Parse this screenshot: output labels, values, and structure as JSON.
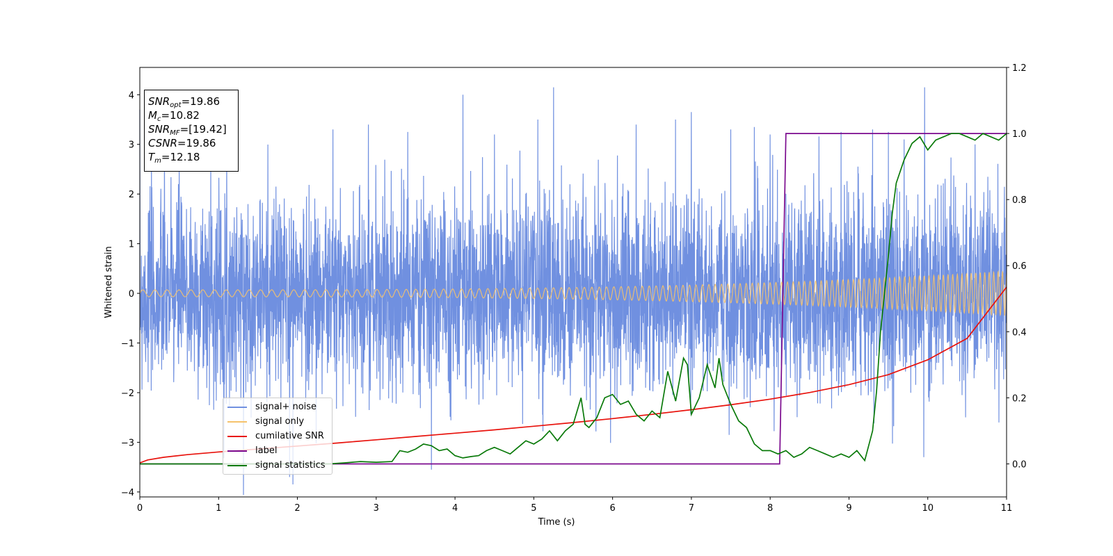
{
  "chart_data": {
    "type": "line",
    "title": "",
    "xlabel": "Time (s)",
    "ylabel_left": "Whitened strain",
    "ylabel_right": "",
    "xlim": [
      0,
      11
    ],
    "ylim_left": [
      -4.1,
      4.55
    ],
    "ylim_right": [
      -0.1,
      1.2
    ],
    "x_ticks": [
      "0",
      "1",
      "2",
      "3",
      "4",
      "5",
      "6",
      "7",
      "8",
      "9",
      "10",
      "11"
    ],
    "y_ticks_left": [
      "−4",
      "−3",
      "−2",
      "−1",
      "0",
      "1",
      "2",
      "3",
      "4"
    ],
    "y_ticks_right": [
      "0.0",
      "0.2",
      "0.4",
      "0.6",
      "0.8",
      "1.0",
      "1.2"
    ],
    "grid": false,
    "legend_position": "lower-left",
    "annotation": {
      "snr_opt_name": "SNR",
      "snr_opt_sub": "opt",
      "snr_opt_value": "=19.86",
      "mc_name": "M",
      "mc_sub": "c",
      "mc_value": "=10.82",
      "snr_mf_name": "SNR",
      "snr_mf_sub": "MF",
      "snr_mf_value": "=[19.42]",
      "csnr_name": "CSNR",
      "csnr_value": "=19.86",
      "tm_name": "T",
      "tm_sub": "m",
      "tm_value": "=12.18"
    },
    "series": [
      {
        "name": "signal+ noise",
        "axis": "left",
        "color": "#7090e0",
        "noise_sigma": 0.95,
        "noise_seed": 7,
        "spikes": [
          [
            0.5,
            2.6
          ],
          [
            0.9,
            2.75
          ],
          [
            1.9,
            -3.7
          ],
          [
            2.45,
            3.3
          ],
          [
            2.9,
            3.4
          ],
          [
            3.4,
            3.25
          ],
          [
            3.7,
            -3.55
          ],
          [
            4.1,
            4.0
          ],
          [
            4.5,
            3.2
          ],
          [
            5.05,
            3.5
          ],
          [
            5.25,
            4.15
          ],
          [
            6.3,
            3.4
          ],
          [
            6.8,
            3.5
          ],
          [
            7.0,
            3.65
          ],
          [
            7.5,
            3.3
          ],
          [
            7.8,
            3.35
          ],
          [
            8.0,
            3.2
          ],
          [
            8.9,
            3.25
          ],
          [
            9.3,
            3.3
          ],
          [
            9.5,
            3.25
          ],
          [
            9.7,
            3.1
          ],
          [
            9.95,
            -3.3
          ],
          [
            9.96,
            4.15
          ],
          [
            10.6,
            3.0
          ]
        ]
      },
      {
        "name": "signal only",
        "axis": "left",
        "color": "#f5c26b",
        "chirp": {
          "amp_start": 0.07,
          "amp_end": 0.45,
          "freq_start": 6.5,
          "freq_end": 18
        }
      },
      {
        "name": "cumilative SNR",
        "axis": "right",
        "color": "#e8120c",
        "x": [
          0,
          0.1,
          0.3,
          0.6,
          1,
          1.5,
          2,
          2.5,
          3,
          3.5,
          4,
          4.5,
          5,
          5.5,
          6,
          6.5,
          7,
          7.5,
          8,
          8.5,
          9,
          9.5,
          10,
          10.5,
          11
        ],
        "values": [
          0.003,
          0.012,
          0.02,
          0.028,
          0.036,
          0.045,
          0.054,
          0.063,
          0.073,
          0.083,
          0.093,
          0.103,
          0.114,
          0.125,
          0.137,
          0.15,
          0.164,
          0.179,
          0.196,
          0.216,
          0.24,
          0.27,
          0.315,
          0.38,
          0.535
        ]
      },
      {
        "name": "label",
        "axis": "right",
        "color": "#7b0a8e",
        "x": [
          0,
          8.12,
          8.2,
          11
        ],
        "values": [
          0.0,
          0.0,
          1.0,
          1.0
        ]
      },
      {
        "name": "signal statistics",
        "axis": "right",
        "color": "#0a7a0a",
        "x": [
          0,
          2.4,
          2.6,
          2.8,
          3.0,
          3.2,
          3.3,
          3.4,
          3.5,
          3.6,
          3.7,
          3.8,
          3.9,
          4.0,
          4.1,
          4.2,
          4.3,
          4.4,
          4.5,
          4.6,
          4.7,
          4.8,
          4.9,
          5.0,
          5.1,
          5.2,
          5.3,
          5.4,
          5.5,
          5.6,
          5.65,
          5.7,
          5.8,
          5.9,
          6.0,
          6.1,
          6.2,
          6.3,
          6.4,
          6.5,
          6.6,
          6.7,
          6.8,
          6.9,
          6.95,
          7.0,
          7.1,
          7.2,
          7.3,
          7.35,
          7.4,
          7.5,
          7.6,
          7.7,
          7.8,
          7.9,
          8.0,
          8.1,
          8.2,
          8.3,
          8.4,
          8.5,
          8.6,
          8.7,
          8.8,
          8.9,
          9.0,
          9.1,
          9.2,
          9.3,
          9.35,
          9.4,
          9.5,
          9.55,
          9.6,
          9.7,
          9.8,
          9.9,
          10.0,
          10.1,
          10.2,
          10.3,
          10.4,
          10.5,
          10.6,
          10.7,
          10.8,
          10.9,
          11.0
        ],
        "values": [
          0.0,
          0.0,
          0.003,
          0.007,
          0.005,
          0.007,
          0.04,
          0.035,
          0.045,
          0.06,
          0.055,
          0.04,
          0.045,
          0.025,
          0.018,
          0.022,
          0.025,
          0.04,
          0.05,
          0.04,
          0.03,
          0.05,
          0.07,
          0.06,
          0.075,
          0.1,
          0.07,
          0.1,
          0.12,
          0.2,
          0.12,
          0.11,
          0.14,
          0.2,
          0.21,
          0.18,
          0.19,
          0.15,
          0.13,
          0.16,
          0.14,
          0.28,
          0.19,
          0.32,
          0.3,
          0.15,
          0.2,
          0.3,
          0.23,
          0.32,
          0.24,
          0.18,
          0.13,
          0.11,
          0.06,
          0.04,
          0.04,
          0.03,
          0.04,
          0.02,
          0.03,
          0.05,
          0.04,
          0.03,
          0.02,
          0.03,
          0.02,
          0.04,
          0.01,
          0.1,
          0.22,
          0.4,
          0.63,
          0.76,
          0.85,
          0.92,
          0.97,
          0.99,
          0.95,
          0.98,
          0.99,
          1.0,
          1.0,
          0.99,
          0.98,
          1.0,
          0.99,
          0.98,
          1.0
        ]
      }
    ]
  }
}
